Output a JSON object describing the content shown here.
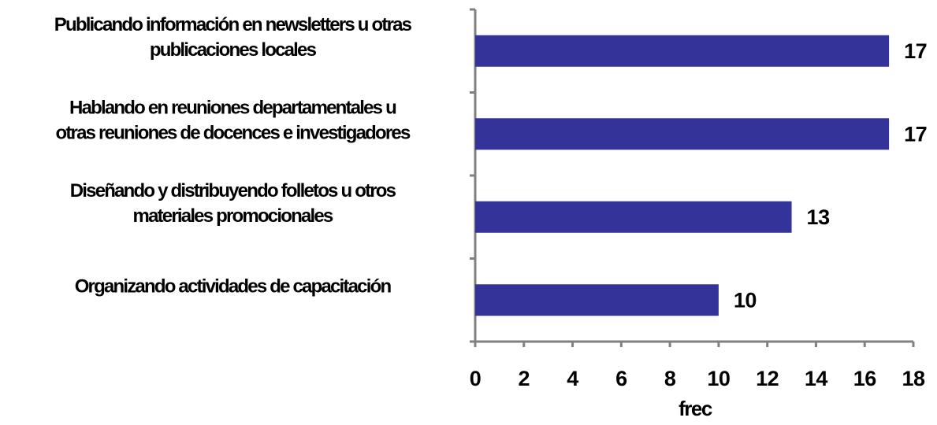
{
  "chart_data": {
    "type": "bar",
    "orientation": "horizontal",
    "categories": [
      [
        "Publicando información en newsletters u otras",
        "publicaciones locales"
      ],
      [
        "Hablando en reuniones departamentales u",
        "otras reuniones de docences e investigadores"
      ],
      [
        "Diseñando y distribuyendo folletos u otros",
        "materiales promocionales"
      ],
      [
        "Organizando actividades de capacitación"
      ]
    ],
    "values": [
      17,
      17,
      13,
      10
    ],
    "data_labels": [
      "17",
      "17",
      "13",
      "10"
    ],
    "xlabel": "frec",
    "ylabel": "",
    "title": "",
    "xlim": [
      0,
      18
    ],
    "xticks": [
      "0",
      "2",
      "4",
      "6",
      "8",
      "10",
      "12",
      "14",
      "16",
      "18"
    ],
    "grid": false,
    "legend": "none",
    "colors": {
      "bar": "#333399",
      "axis": "#808080",
      "text": "#000000"
    }
  }
}
